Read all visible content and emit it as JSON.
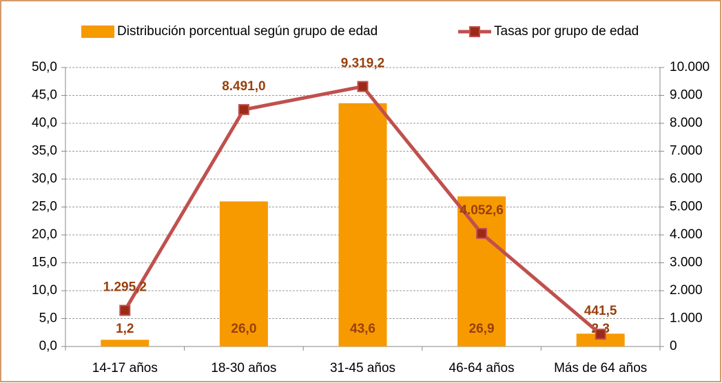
{
  "chart_data": {
    "type": "combo",
    "categories": [
      "14-17 años",
      "18-30 años",
      "31-45 años",
      "46-64 años",
      "Más de 64 años"
    ],
    "series": [
      {
        "name": "Distribución porcentual según grupo de edad",
        "type": "bar",
        "color": "#f79a00",
        "values": [
          1.2,
          26.0,
          43.6,
          26.9,
          2.3
        ],
        "value_labels": [
          "1,2",
          "26,0",
          "43,6",
          "26,9",
          "2,3"
        ]
      },
      {
        "name": "Tasas por grupo de edad",
        "type": "line",
        "axis": "y2",
        "color": "#c0504d",
        "marker_color": "#9c2a16",
        "values": [
          1295.2,
          8491.0,
          9319.2,
          4052.6,
          441.5
        ],
        "value_labels": [
          "1.295,2",
          "8.491,0",
          "9.319,2",
          "4.052,6",
          "441,5"
        ]
      }
    ],
    "ylim": [
      0,
      50
    ],
    "yticks": [
      {
        "value": 0,
        "label": "0,0"
      },
      {
        "value": 5,
        "label": "5,0"
      },
      {
        "value": 10,
        "label": "10,0"
      },
      {
        "value": 15,
        "label": "15,0"
      },
      {
        "value": 20,
        "label": "20,0"
      },
      {
        "value": 25,
        "label": "25,0"
      },
      {
        "value": 30,
        "label": "30,0"
      },
      {
        "value": 35,
        "label": "35,0"
      },
      {
        "value": 40,
        "label": "40,0"
      },
      {
        "value": 45,
        "label": "45,0"
      },
      {
        "value": 50,
        "label": "50,0"
      }
    ],
    "y2lim": [
      0,
      10000
    ],
    "y2ticks": [
      0,
      {
        "value": 1000,
        "label": "1.000"
      },
      {
        "value": 2000,
        "label": "2.000"
      },
      {
        "value": 3000,
        "label": "3.000"
      },
      {
        "value": 4000,
        "label": "4.000"
      },
      {
        "value": 5000,
        "label": "5.000"
      },
      {
        "value": 6000,
        "label": "6.000"
      },
      {
        "value": 7000,
        "label": "7.000"
      },
      {
        "value": 8000,
        "label": "8.000"
      },
      {
        "value": 9000,
        "label": "9.000"
      },
      {
        "value": 10000,
        "label": "10.000"
      }
    ],
    "grid": true,
    "legend": "top",
    "label_color": "#98400c"
  }
}
